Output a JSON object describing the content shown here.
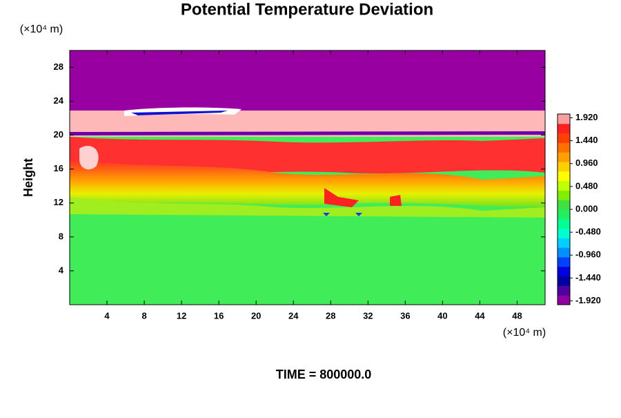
{
  "chart_data": {
    "type": "contour",
    "title": "Potential Temperature Deviation",
    "ylabel": "Height",
    "x_unit": "(×10⁴ m)",
    "y_unit": "(×10⁴ m)",
    "annotation": "TIME = 800000.0",
    "xlim": [
      0,
      51
    ],
    "ylim": [
      0,
      30
    ],
    "xticks": [
      4,
      8,
      12,
      16,
      20,
      24,
      28,
      32,
      36,
      40,
      44,
      48
    ],
    "yticks": [
      4,
      8,
      12,
      16,
      20,
      24,
      28
    ],
    "clim": [
      -2,
      2
    ],
    "cticks": [
      {
        "value": 1.92,
        "label": "1.920"
      },
      {
        "value": 1.44,
        "label": "1.440"
      },
      {
        "value": 0.96,
        "label": "0.960"
      },
      {
        "value": 0.48,
        "label": "0.480"
      },
      {
        "value": 0,
        "label": "0.000"
      },
      {
        "value": -0.48,
        "label": "-0.480"
      },
      {
        "value": -0.96,
        "label": "-0.960"
      },
      {
        "value": -1.44,
        "label": "-1.440"
      },
      {
        "value": -1.92,
        "label": "-1.920"
      }
    ],
    "colormap": [
      "#9000a0",
      "#5000a0",
      "#0000a0",
      "#0000e0",
      "#0040ff",
      "#0090ff",
      "#00d0ff",
      "#00ffd0",
      "#00ff90",
      "#20f060",
      "#40e040",
      "#80f000",
      "#c0ff00",
      "#ffff00",
      "#ffd000",
      "#ffa000",
      "#ff7000",
      "#ff4000",
      "#ff2020",
      "#f8a0a0"
    ]
  }
}
